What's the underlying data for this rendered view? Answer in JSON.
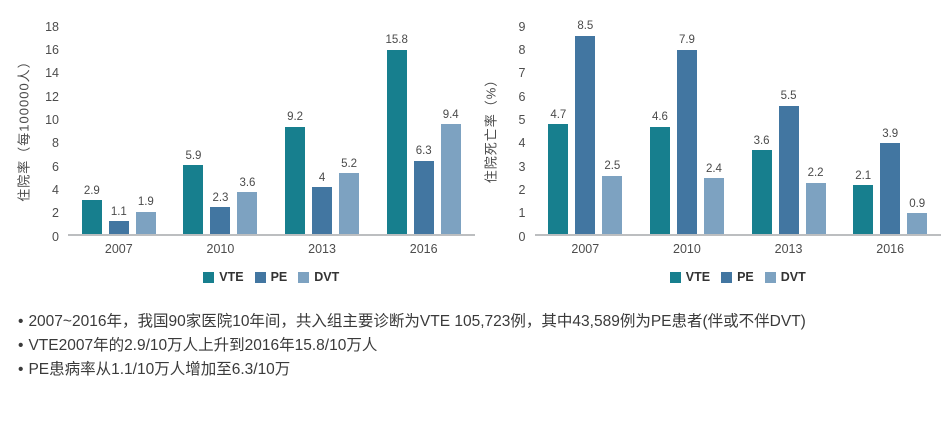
{
  "bullet_char": "•",
  "colors": {
    "series": [
      "#177f8e",
      "#4276a1",
      "#7da2c1"
    ],
    "axis_line": "#bcbec0",
    "text": "#4a4a4a"
  },
  "chart_data": [
    {
      "type": "bar",
      "title": "",
      "ylabel": "住院率（每100000人）",
      "xlabel": "",
      "categories": [
        "2007",
        "2010",
        "2013",
        "2016"
      ],
      "series": [
        {
          "name": "VTE",
          "values": [
            2.9,
            5.9,
            9.2,
            15.8
          ]
        },
        {
          "name": "PE",
          "values": [
            1.1,
            2.3,
            4,
            6.3
          ]
        },
        {
          "name": "DVT",
          "values": [
            1.9,
            3.6,
            5.2,
            9.4
          ]
        }
      ],
      "ylim": [
        0,
        18
      ],
      "ytick_step": 2,
      "grid": false,
      "legend_position": "bottom"
    },
    {
      "type": "bar",
      "title": "",
      "ylabel": "住院死亡率（%）",
      "xlabel": "",
      "categories": [
        "2007",
        "2010",
        "2013",
        "2016"
      ],
      "series": [
        {
          "name": "VTE",
          "values": [
            4.7,
            4.6,
            3.6,
            2.1
          ]
        },
        {
          "name": "PE",
          "values": [
            8.5,
            7.9,
            5.5,
            3.9
          ]
        },
        {
          "name": "DVT",
          "values": [
            2.5,
            2.4,
            2.2,
            0.9
          ]
        }
      ],
      "ylim": [
        0,
        9
      ],
      "ytick_step": 1,
      "grid": false,
      "legend_position": "bottom"
    }
  ],
  "bullets": [
    "2007~2016年，我国90家医院10年间，共入组主要诊断为VTE 105,723例，其中43,589例为PE患者(伴或不伴DVT)",
    "VTE2007年的2.9/10万人上升到2016年15.8/10万人",
    "PE患病率从1.1/10万人增加至6.3/10万"
  ]
}
